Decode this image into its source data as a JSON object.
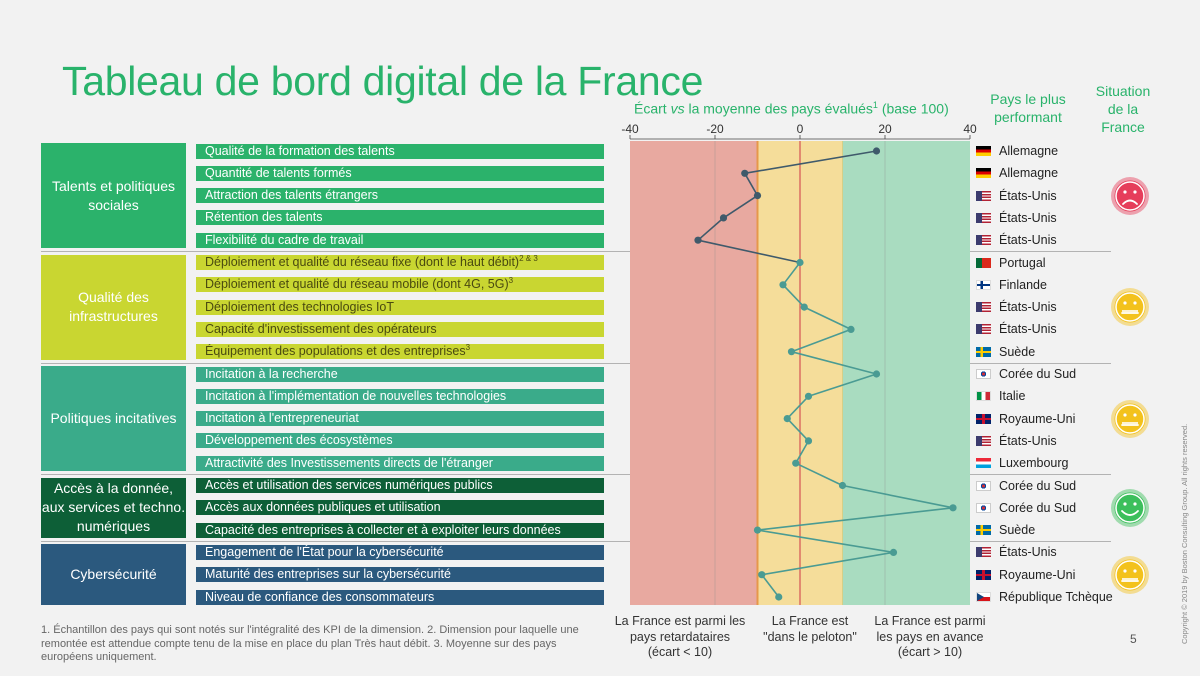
{
  "title": "Tableau de bord digital de la France",
  "axis_title": {
    "pre": "Écart ",
    "vs": "vs",
    "post": " la moyenne des pays évalués",
    "sup": "1",
    "post2": " (base 100)"
  },
  "column_heads": {
    "best": "Pays le plus performant",
    "situation": "Situation de la France"
  },
  "categories": [
    {
      "label": "Talents et politiques sociales",
      "color": "#2bb26b",
      "mood": "sad"
    },
    {
      "label": "Qualité des infrastructures",
      "color": "#c9d631",
      "mood": "neutral"
    },
    {
      "label": "Politiques incitatives",
      "color": "#3aab8a",
      "mood": "neutral"
    },
    {
      "label": "Accès à la donnée, aux services et techno. numériques",
      "color": "#0d5f37",
      "mood": "happy"
    },
    {
      "label": "Cybersécurité",
      "color": "#2b597e",
      "mood": "neutral"
    }
  ],
  "kpis": [
    {
      "label": "Qualité de la formation des talents",
      "sup": "",
      "country": "Allemagne",
      "flag": "de"
    },
    {
      "label": "Quantité de talents formés",
      "sup": "",
      "country": "Allemagne",
      "flag": "de"
    },
    {
      "label": "Attraction des talents étrangers",
      "sup": "",
      "country": "États-Unis",
      "flag": "us"
    },
    {
      "label": "Rétention des talents",
      "sup": "",
      "country": "États-Unis",
      "flag": "us"
    },
    {
      "label": "Flexibilité du cadre de travail",
      "sup": "",
      "country": "États-Unis",
      "flag": "us"
    },
    {
      "label": "Déploiement et qualité du réseau fixe (dont le haut débit)",
      "sup": "2 & 3",
      "country": "Portugal",
      "flag": "pt"
    },
    {
      "label": "Déploiement et qualité du réseau mobile (dont 4G, 5G)",
      "sup": "3",
      "country": "Finlande",
      "flag": "fi"
    },
    {
      "label": "Déploiement des technologies IoT",
      "sup": "",
      "country": "États-Unis",
      "flag": "us"
    },
    {
      "label": "Capacité d'investissement des opérateurs",
      "sup": "",
      "country": "États-Unis",
      "flag": "us"
    },
    {
      "label": "Équipement des populations et des entreprises",
      "sup": "3",
      "country": "Suède",
      "flag": "se"
    },
    {
      "label": "Incitation à la recherche",
      "sup": "",
      "country": "Corée du Sud",
      "flag": "kr"
    },
    {
      "label": "Incitation à l'implémentation de nouvelles technologies",
      "sup": "",
      "country": "Italie",
      "flag": "it"
    },
    {
      "label": "Incitation à l'entrepreneuriat",
      "sup": "",
      "country": "Royaume-Uni",
      "flag": "gb"
    },
    {
      "label": "Développement des écosystèmes",
      "sup": "",
      "country": "États-Unis",
      "flag": "us"
    },
    {
      "label": "Attractivité des Investissements directs de l'étranger",
      "sup": "",
      "country": "Luxembourg",
      "flag": "lu"
    },
    {
      "label": "Accès et utilisation des services numériques publics",
      "sup": "",
      "country": "Corée du Sud",
      "flag": "kr"
    },
    {
      "label": "Accès aux données publiques et utilisation",
      "sup": "",
      "country": "Corée du Sud",
      "flag": "kr"
    },
    {
      "label": "Capacité des entreprises à collecter et à exploiter leurs données",
      "sup": "",
      "country": "Suède",
      "flag": "se"
    },
    {
      "label": "Engagement de l'État pour la cybersécurité",
      "sup": "",
      "country": "États-Unis",
      "flag": "us"
    },
    {
      "label": "Maturité des entreprises sur la cybersécurité",
      "sup": "",
      "country": "Royaume-Uni",
      "flag": "gb"
    },
    {
      "label": "Niveau de confiance des consommateurs",
      "sup": "",
      "country": "République Tchèque",
      "flag": "cz"
    }
  ],
  "zones": [
    {
      "label": "La France est parmi les pays retardataires (écart < 10)",
      "lines": [
        "La France est parmi les",
        "pays retardataires",
        "(écart < 10)"
      ],
      "from": -40,
      "to": -10,
      "color": "#e8a9a0"
    },
    {
      "label": "La France est \"dans le peloton\"",
      "lines": [
        "La France est",
        "\"dans le peloton\""
      ],
      "from": -10,
      "to": 10,
      "color": "#f5dd9a"
    },
    {
      "label": "La France est parmi les pays en avance (écart > 10)",
      "lines": [
        "La France est parmi",
        "les pays en avance",
        "(écart > 10)"
      ],
      "from": 10,
      "to": 40,
      "color": "#a9dcc0"
    }
  ],
  "chart_data": {
    "type": "line",
    "title": "Écart vs la moyenne des pays évalués (base 100)",
    "xlim": [
      -40,
      40
    ],
    "xticks": [
      -40,
      -20,
      0,
      20,
      40
    ],
    "categories": [
      "Qualité de la formation des talents",
      "Quantité de talents formés",
      "Attraction des talents étrangers",
      "Rétention des talents",
      "Flexibilité du cadre de travail",
      "Déploiement et qualité du réseau fixe (dont le haut débit)",
      "Déploiement et qualité du réseau mobile (dont 4G, 5G)",
      "Déploiement des technologies IoT",
      "Capacité d'investissement des opérateurs",
      "Équipement des populations et des entreprises",
      "Incitation à la recherche",
      "Incitation à l'implémentation de nouvelles technologies",
      "Incitation à l'entrepreneuriat",
      "Développement des écosystèmes",
      "Attractivité des Investissements directs de l'étranger",
      "Accès et utilisation des services numériques publics",
      "Accès aux données publiques et utilisation",
      "Capacité des entreprises à collecter et à exploiter leurs données",
      "Engagement de l'État pour la cybersécurité",
      "Maturité des entreprises sur la cybersécurité",
      "Niveau de confiance des consommateurs"
    ],
    "values": [
      18,
      -13,
      -10,
      -18,
      -24,
      0,
      -4,
      1,
      12,
      -2,
      18,
      2,
      -3,
      2,
      -1,
      10,
      36,
      -10,
      22,
      -9,
      -5
    ],
    "category_groups": [
      [
        0,
        4
      ],
      [
        5,
        9
      ],
      [
        10,
        14
      ],
      [
        15,
        17
      ],
      [
        18,
        20
      ]
    ],
    "line_colors": [
      "#3f5a6b",
      "#4a9b93"
    ],
    "reference_line_at": 0
  },
  "footnote": "1. Échantillon des pays qui sont notés sur l'intégralité des KPI de la dimension.   2. Dimension pour laquelle une remontée est attendue compte tenu de la mise en place du plan Très haut débit.   3. Moyenne sur des pays européens uniquement.",
  "page_number": "5",
  "copyright": "Copyright © 2019 by Boston Consulting Group. All rights reserved."
}
